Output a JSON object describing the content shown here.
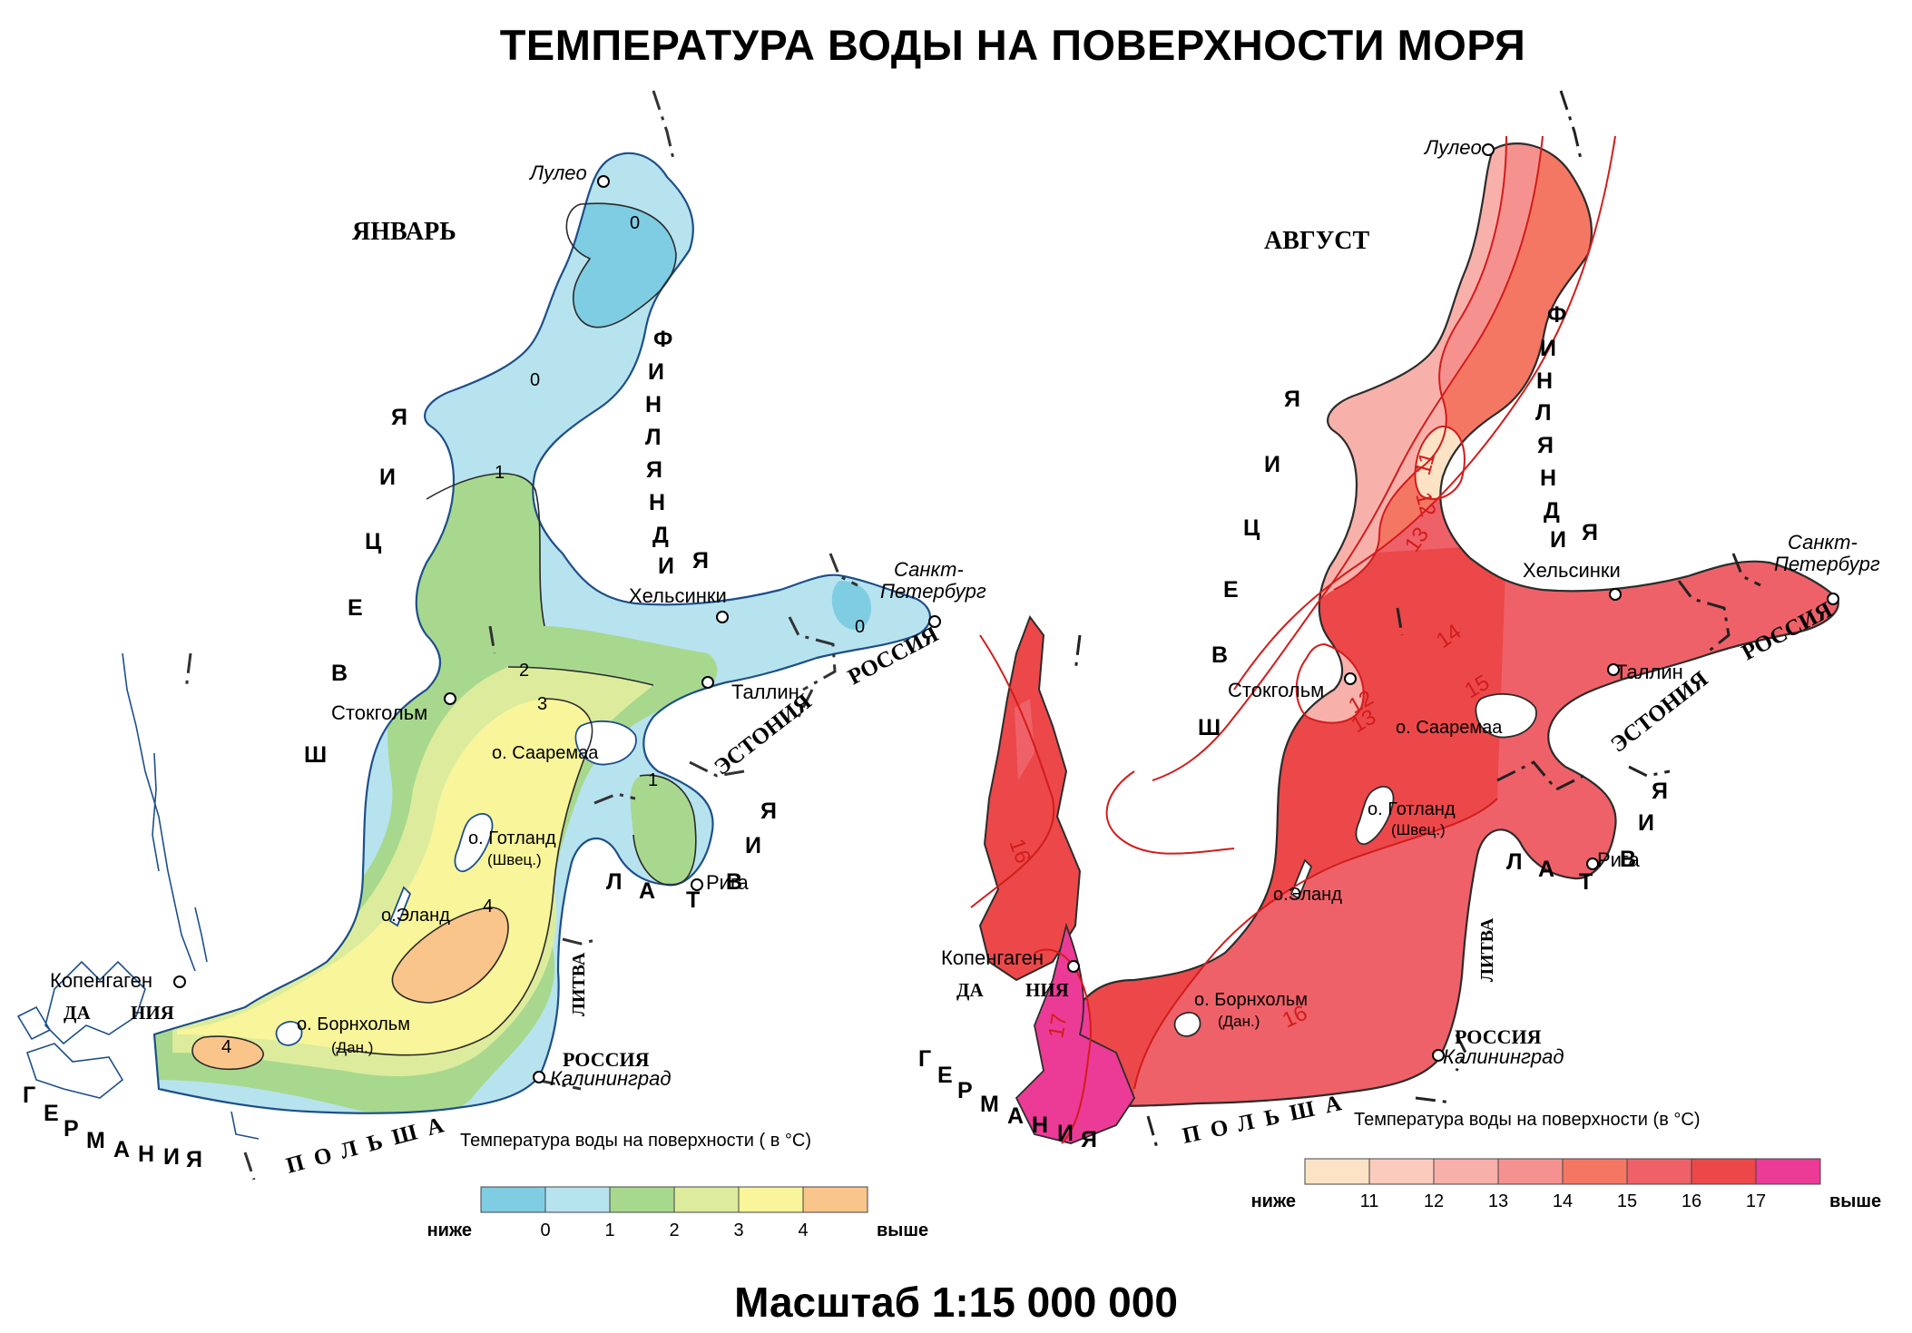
{
  "title": "ТЕМПЕРАТУРА ВОДЫ НА ПОВЕРХНОСТИ МОРЯ",
  "scale": "Масштаб 1:15 000 000",
  "maps": [
    {
      "name": "ЯНВАРЬ",
      "countries": {
        "sweden": [
          "Ш",
          "В",
          "Е",
          "Ц",
          "И",
          "Я"
        ],
        "finland": [
          "Ф",
          "И",
          "Н",
          "Л",
          "Я",
          "Н",
          "Д",
          "И",
          "Я"
        ],
        "russia": "РОССИЯ",
        "estonia": "ЭСТОНИЯ",
        "latvia": [
          "Л",
          "А",
          "Т",
          "В",
          "И",
          "Я"
        ],
        "lithuania": "ЛИТВА",
        "russia_k": "РОССИЯ",
        "poland": "ПОЛЬША",
        "germany": [
          "Г",
          "Е",
          "Р",
          "М",
          "А",
          "Н",
          "И",
          "Я"
        ],
        "denmark_a": "ДА",
        "denmark_b": "НИЯ"
      },
      "cities": {
        "lulea": "Лулео",
        "spb": "Санкт-\nПетербург",
        "helsinki": "Хельсинки",
        "tallinn": "Таллин",
        "stockholm": "Стокгольм",
        "riga": "Рига",
        "kaliningrad": "Калининград",
        "copenhagen": "Копенгаген"
      },
      "islands": {
        "saaremaa": "о. Сааремаа",
        "gotland": "о. Готланд",
        "gotland_sub": "(Швец.)",
        "oland": "о.Эланд",
        "bornholm": "о. Борнхольм",
        "bornholm_sub": "(Дан.)"
      },
      "isotherm_labels": [
        "0",
        "0",
        "1",
        "2",
        "3",
        "1",
        "0",
        "4",
        "4"
      ],
      "legend": {
        "title": "Температура воды на поверхности ( в °С)",
        "colors": [
          "#7fcde3",
          "#b7e3ef",
          "#a8d88e",
          "#dcec9c",
          "#f8f59a",
          "#f9c58a"
        ],
        "labels": [
          "ниже",
          "0",
          "1",
          "2",
          "3",
          "4",
          "выше"
        ]
      }
    },
    {
      "name": "АВГУСТ",
      "countries": {
        "sweden": [
          "Ш",
          "В",
          "Е",
          "Ц",
          "И",
          "Я"
        ],
        "finland": [
          "Ф",
          "И",
          "Н",
          "Л",
          "Я",
          "Н",
          "Д",
          "И",
          "Я"
        ],
        "russia": "РОССИЯ",
        "estonia": "ЭСТОНИЯ",
        "latvia": [
          "Л",
          "А",
          "Т",
          "В",
          "И",
          "Я"
        ],
        "lithuania": "ЛИТВА",
        "russia_k": "РОССИЯ",
        "poland": "ПОЛЬША",
        "germany": [
          "Г",
          "Е",
          "Р",
          "М",
          "А",
          "Н",
          "И",
          "Я"
        ],
        "denmark_a": "ДА",
        "denmark_b": "НИЯ"
      },
      "cities": {
        "lulea": "Лулео",
        "spb": "Санкт-\nПетербург",
        "helsinki": "Хельсинки",
        "tallinn": "Таллин",
        "stockholm": "Стокгольм",
        "riga": "Рига",
        "kaliningrad": "Калининград",
        "copenhagen": "Копенгаген"
      },
      "islands": {
        "saaremaa": "о. Сааремаа",
        "gotland": "о. Готланд",
        "gotland_sub": "(Швец.)",
        "oland": "о.Эланд",
        "bornholm": "о. Борнхольм",
        "bornholm_sub": "(Дан.)"
      },
      "isotherm_labels": [
        "11",
        "12",
        "13",
        "14",
        "15",
        "12",
        "13",
        "16",
        "16",
        "17"
      ],
      "legend": {
        "title": "Температура воды на поверхности (в °С)",
        "colors": [
          "#fde3c6",
          "#fbcbbd",
          "#f8b0ab",
          "#f5928f",
          "#f47763",
          "#ef6168",
          "#ec4849",
          "#ec3b96"
        ],
        "labels": [
          "ниже",
          "11",
          "12",
          "13",
          "14",
          "15",
          "16",
          "17",
          "выше"
        ]
      }
    }
  ]
}
